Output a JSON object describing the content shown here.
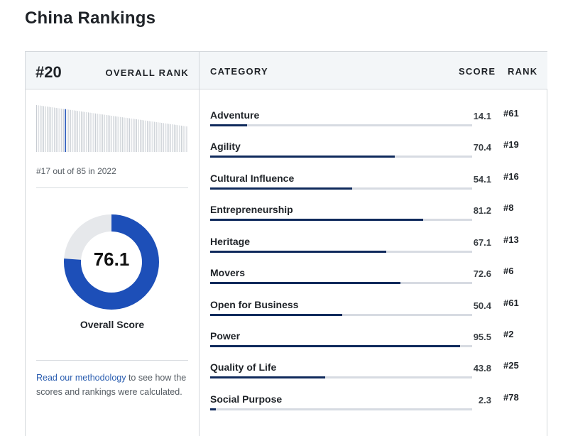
{
  "page": {
    "title": "China Rankings"
  },
  "overall": {
    "rank": "#20",
    "rank_label": "OVERALL RANK",
    "history_caption": "#17 out of 85 in 2022",
    "history_highlight_position": 17,
    "history_total": 85,
    "score": "76.1",
    "score_value": 76.1,
    "score_label": "Overall Score"
  },
  "table": {
    "headers": {
      "category": "CATEGORY",
      "score": "SCORE",
      "rank": "RANK"
    },
    "rows": [
      {
        "category": "Adventure",
        "score": "14.1",
        "rank": "#61",
        "value": 14.1
      },
      {
        "category": "Agility",
        "score": "70.4",
        "rank": "#19",
        "value": 70.4
      },
      {
        "category": "Cultural Influence",
        "score": "54.1",
        "rank": "#16",
        "value": 54.1
      },
      {
        "category": "Entrepreneurship",
        "score": "81.2",
        "rank": "#8",
        "value": 81.2
      },
      {
        "category": "Heritage",
        "score": "67.1",
        "rank": "#13",
        "value": 67.1
      },
      {
        "category": "Movers",
        "score": "72.6",
        "rank": "#6",
        "value": 72.6
      },
      {
        "category": "Open for Business",
        "score": "50.4",
        "rank": "#61",
        "value": 50.4
      },
      {
        "category": "Power",
        "score": "95.5",
        "rank": "#2",
        "value": 95.5
      },
      {
        "category": "Quality of Life",
        "score": "43.8",
        "rank": "#25",
        "value": 43.8
      },
      {
        "category": "Social Purpose",
        "score": "2.3",
        "rank": "#78",
        "value": 2.3
      }
    ]
  },
  "methodology": {
    "link_text": "Read our methodology",
    "rest_text": " to see how the scores and rankings were calculated."
  },
  "colors": {
    "donut_fill": "#1d4fb8",
    "donut_track": "#e6e8eb",
    "bar_fill": "#0f2a5c",
    "bar_track": "#d7dbe2",
    "spark_highlight": "#1d4fb8",
    "spark_bar": "#c7ccd2"
  }
}
